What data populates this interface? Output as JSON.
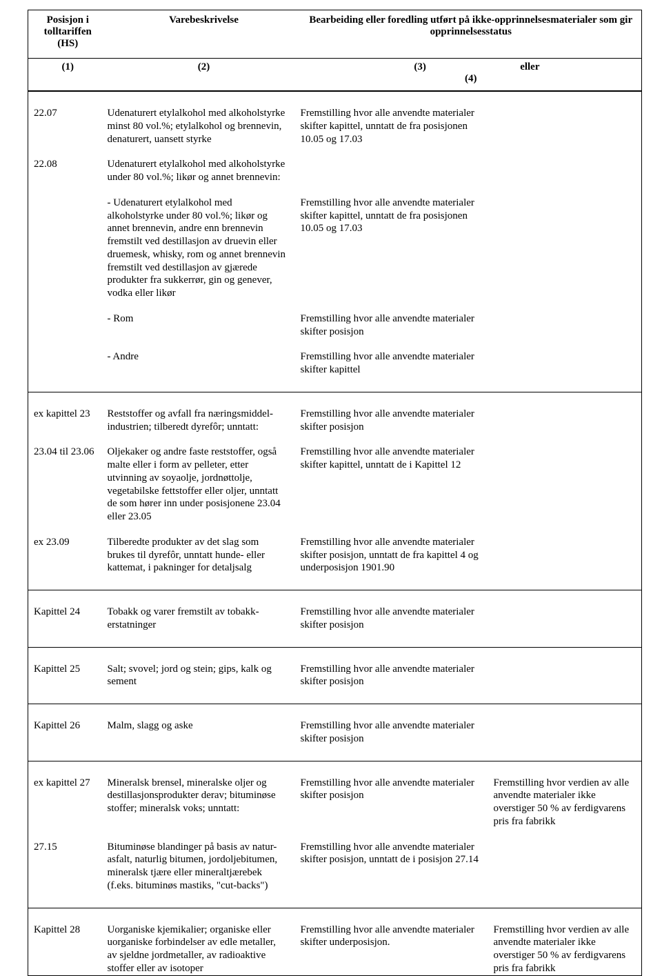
{
  "headers": {
    "col1": "Posisjon i tolltariffen (HS)",
    "col2": "Varebeskrivelse",
    "col34": "Bearbeiding eller foredling utført på ikke-opprinnelsesmaterialer som gir opprinnelsesstatus",
    "num1": "(1)",
    "num2": "(2)",
    "num3": "(3)",
    "num_eller": "eller",
    "num4": "(4)"
  },
  "sections": [
    {
      "rows": [
        {
          "c1": "22.07",
          "c2": "Udenaturert etylalkohol med alkoholstyrke minst 80 vol.%; etylalkohol og brennevin, denaturert, uansett styrke",
          "c3": "Fremstilling hvor alle anvendte materialer skifter kapittel, unntatt de fra posisjonen 10.05 og 17.03",
          "c4": ""
        },
        {
          "c1": "22.08",
          "c2": "Udenaturert etylalkohol med alkoholstyrke under 80 vol.%; likør og annet brennevin:",
          "c3": "",
          "c4": ""
        },
        {
          "c1": "",
          "c2": "- Udenaturert etylalkohol med alkoholstyrke under 80 vol.%; likør og annet brennevin, andre enn brennevin fremstilt ved destillasjon av druevin eller druemesk, whisky, rom og annet brennevin fremstilt ved destillasjon av gjærede produkter fra sukkerrør, gin og genever, vodka eller likør",
          "c3": "Fremstilling hvor alle anvendte materialer skifter kapittel, unntatt de fra posisjonen 10.05 og 17.03",
          "c4": ""
        },
        {
          "c1": "",
          "c2": "- Rom",
          "c3": "Fremstilling hvor alle anvendte materialer skifter posisjon",
          "c4": ""
        },
        {
          "c1": "",
          "c2": "- Andre",
          "c3": "Fremstilling hvor alle anvendte materialer skifter kapittel",
          "c4": ""
        }
      ]
    },
    {
      "rows": [
        {
          "c1": "ex kapittel 23",
          "c2": "Reststoffer og avfall fra næringsmiddel-industrien; tilberedt dyrefôr; unntatt:",
          "c3": "Fremstilling hvor alle anvendte materialer skifter posisjon",
          "c4": ""
        },
        {
          "c1": "23.04 til 23.06",
          "c2": "Oljekaker og andre faste reststoffer, også malte eller i form av pelleter, etter utvinning av soyaolje, jordnøttolje, vegetabilske fettstoffer eller oljer, unntatt de som hører inn under posisjonene 23.04 eller 23.05",
          "c3": "Fremstilling hvor alle anvendte materialer skifter kapittel, unntatt de i Kapittel 12",
          "c4": ""
        },
        {
          "c1": "ex 23.09",
          "c2": "Tilberedte produkter av det slag som brukes til dyrefôr, unntatt hunde- eller kattemat, i pakninger for detaljsalg",
          "c3": "Fremstilling hvor alle anvendte materialer skifter posisjon, unntatt de fra kapittel 4 og underposisjon 1901.90",
          "c4": ""
        }
      ]
    },
    {
      "rows": [
        {
          "c1": "Kapittel 24",
          "c2": "Tobakk og varer fremstilt av tobakk-erstatninger",
          "c3": "Fremstilling hvor alle anvendte materialer skifter posisjon",
          "c4": ""
        }
      ]
    },
    {
      "rows": [
        {
          "c1": "Kapittel 25",
          "c2": "Salt; svovel; jord og stein; gips, kalk og sement",
          "c3": "Fremstilling hvor alle anvendte materialer skifter posisjon",
          "c4": ""
        }
      ]
    },
    {
      "rows": [
        {
          "c1": "Kapittel 26",
          "c2": "Malm, slagg og aske",
          "c3": "Fremstilling hvor alle anvendte materialer skifter posisjon",
          "c4": ""
        }
      ]
    },
    {
      "rows": [
        {
          "c1": "ex kapittel 27",
          "c2": "Mineralsk brensel, mineralske oljer og destillasjonsprodukter derav; bituminøse stoffer; mineralsk voks; unntatt:",
          "c3": "Fremstilling hvor alle anvendte materialer skifter posisjon",
          "c4": "Fremstilling hvor verdien av alle anvendte materialer ikke overstiger 50 % av ferdigvarens pris fra fabrikk"
        },
        {
          "c1": "27.15",
          "c2": "Bituminøse blandinger på basis av natur-asfalt, naturlig bitumen, jordoljebitumen, mineralsk tjære eller mineraltjærebek (f.eks. bituminøs mastiks, \"cut-backs\")",
          "c3": "Fremstilling hvor alle anvendte materialer skifter posisjon, unntatt de i posisjon 27.14",
          "c4": ""
        }
      ]
    },
    {
      "rows": [
        {
          "c1": "Kapittel 28",
          "c2": "Uorganiske kjemikalier; organiske eller uorganiske forbindelser av edle metaller, av sjeldne jordmetaller, av radioaktive stoffer eller av isotoper",
          "c3": "Fremstilling hvor alle anvendte materialer skifter underposisjon.",
          "c4": "Fremstilling hvor verdien av alle anvendte materialer ikke overstiger 50 % av ferdigvarens pris fra fabrikk"
        }
      ]
    }
  ]
}
